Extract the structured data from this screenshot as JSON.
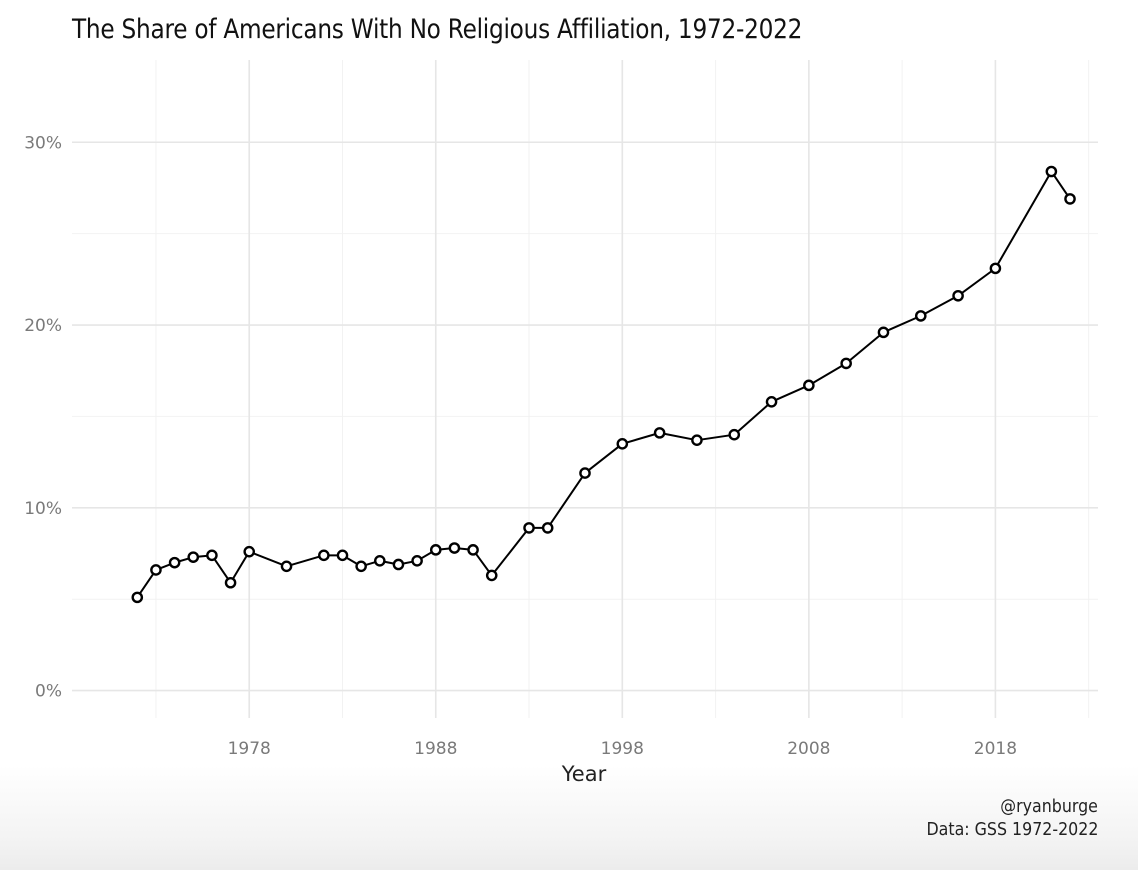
{
  "chart_data": {
    "type": "line",
    "title": "The Share of Americans With No Religious Affiliation, 1972-2022",
    "xlabel": "Year",
    "ylabel": "",
    "xlim": [
      1968.5,
      2023.5
    ],
    "ylim": [
      -1.5,
      34.5
    ],
    "x_major_ticks": [
      1978,
      1988,
      1998,
      2008,
      2018
    ],
    "x_tick_labels": [
      "1978",
      "1988",
      "1998",
      "2008",
      "2018"
    ],
    "x_minor_ticks": [
      1973,
      1983,
      1993,
      2003,
      2013,
      2023
    ],
    "y_major_ticks": [
      0,
      10,
      20,
      30
    ],
    "y_tick_labels": [
      "0%",
      "10%",
      "20%",
      "30%"
    ],
    "y_minor_ticks": [
      5,
      15,
      25
    ],
    "grid": true,
    "series": [
      {
        "name": "No religious affiliation",
        "x": [
          1972,
          1973,
          1974,
          1975,
          1976,
          1977,
          1978,
          1980,
          1982,
          1983,
          1984,
          1985,
          1986,
          1987,
          1988,
          1989,
          1990,
          1991,
          1993,
          1994,
          1996,
          1998,
          2000,
          2002,
          2004,
          2006,
          2008,
          2010,
          2012,
          2014,
          2016,
          2018,
          2021,
          2022
        ],
        "values": [
          5.1,
          6.6,
          7.0,
          7.3,
          7.4,
          5.9,
          7.6,
          6.8,
          7.4,
          7.4,
          6.8,
          7.1,
          6.9,
          7.1,
          7.7,
          7.8,
          7.7,
          6.3,
          8.9,
          8.9,
          11.9,
          13.5,
          14.1,
          13.7,
          14.0,
          15.8,
          16.7,
          17.9,
          19.6,
          20.5,
          21.6,
          23.1,
          28.4,
          26.9
        ]
      }
    ]
  },
  "caption": {
    "handle": "@ryanburge",
    "source": "Data: GSS 1972-2022"
  }
}
